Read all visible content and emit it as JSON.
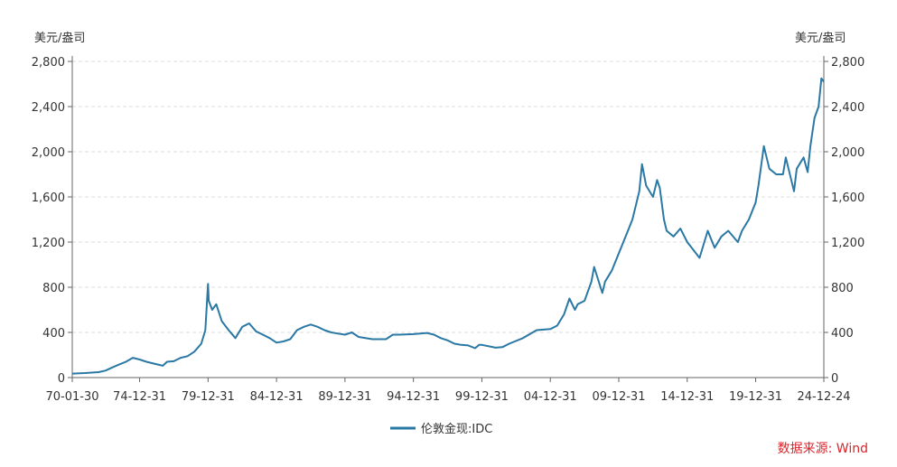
{
  "chart_data": {
    "type": "line",
    "y_unit_left": "美元/盎司",
    "y_unit_right": "美元/盎司",
    "ylim": [
      0,
      2800
    ],
    "yticks": [
      0,
      400,
      800,
      1200,
      1600,
      2000,
      2400,
      2800
    ],
    "ytick_labels": [
      "0",
      "400",
      "800",
      "1,200",
      "1,600",
      "2,000",
      "2,400",
      "2,800"
    ],
    "xlim": [
      1970.08,
      2024.98
    ],
    "xtick_labels": [
      "70-01-30",
      "74-12-31",
      "79-12-31",
      "84-12-31",
      "89-12-31",
      "94-12-31",
      "99-12-31",
      "04-12-31",
      "09-12-31",
      "14-12-31",
      "19-12-31",
      "24-12-24"
    ],
    "xtick_positions": [
      1970.08,
      1975.0,
      1980.0,
      1985.0,
      1990.0,
      1995.0,
      2000.0,
      2005.0,
      2010.0,
      2015.0,
      2020.0,
      2024.98
    ],
    "grid": "horizontal dashed",
    "legend_position": "bottom",
    "series": [
      {
        "name": "伦敦金现:IDC",
        "color": "#2a78a4",
        "x": [
          1970.08,
          1971.0,
          1972.0,
          1972.5,
          1973.0,
          1973.5,
          1974.0,
          1974.5,
          1975.0,
          1975.5,
          1976.0,
          1976.7,
          1977.0,
          1977.5,
          1978.0,
          1978.5,
          1979.0,
          1979.5,
          1979.8,
          1980.0,
          1980.05,
          1980.3,
          1980.6,
          1981.0,
          1981.5,
          1982.0,
          1982.5,
          1983.0,
          1983.5,
          1984.0,
          1984.5,
          1985.0,
          1985.5,
          1986.0,
          1986.5,
          1987.0,
          1987.5,
          1988.0,
          1988.5,
          1989.0,
          1989.5,
          1990.0,
          1990.5,
          1991.0,
          1992.0,
          1993.0,
          1993.5,
          1994.0,
          1995.0,
          1996.0,
          1996.5,
          1997.0,
          1997.5,
          1998.0,
          1998.5,
          1999.0,
          1999.5,
          1999.8,
          2000.0,
          2001.0,
          2001.5,
          2002.0,
          2003.0,
          2004.0,
          2005.0,
          2005.5,
          2006.0,
          2006.4,
          2006.8,
          2007.0,
          2007.5,
          2008.0,
          2008.2,
          2008.8,
          2009.0,
          2009.5,
          2010.0,
          2010.5,
          2011.0,
          2011.5,
          2011.7,
          2012.0,
          2012.5,
          2012.8,
          2013.0,
          2013.3,
          2013.5,
          2014.0,
          2014.5,
          2015.0,
          2015.9,
          2016.5,
          2017.0,
          2017.5,
          2018.0,
          2018.7,
          2019.0,
          2019.5,
          2020.0,
          2020.2,
          2020.6,
          2021.0,
          2021.5,
          2022.0,
          2022.2,
          2022.8,
          2023.0,
          2023.5,
          2023.8,
          2024.0,
          2024.3,
          2024.6,
          2024.8,
          2024.98
        ],
        "y": [
          35,
          40,
          48,
          62,
          90,
          115,
          140,
          175,
          160,
          140,
          125,
          105,
          140,
          145,
          175,
          190,
          230,
          300,
          420,
          830,
          680,
          600,
          650,
          500,
          420,
          350,
          450,
          480,
          410,
          380,
          350,
          310,
          320,
          340,
          420,
          450,
          470,
          450,
          420,
          400,
          390,
          380,
          400,
          360,
          340,
          340,
          380,
          380,
          385,
          395,
          380,
          350,
          330,
          300,
          290,
          285,
          260,
          290,
          290,
          265,
          270,
          300,
          350,
          420,
          430,
          460,
          560,
          700,
          600,
          650,
          680,
          850,
          980,
          750,
          850,
          950,
          1100,
          1250,
          1400,
          1650,
          1890,
          1700,
          1600,
          1750,
          1680,
          1400,
          1300,
          1250,
          1320,
          1200,
          1060,
          1300,
          1150,
          1250,
          1300,
          1200,
          1300,
          1400,
          1550,
          1700,
          2050,
          1850,
          1800,
          1800,
          1950,
          1650,
          1850,
          1950,
          1820,
          2050,
          2300,
          2400,
          2650,
          2620
        ]
      }
    ]
  },
  "legend": {
    "label": "伦敦金现:IDC"
  },
  "source": "数据来源: Wind"
}
